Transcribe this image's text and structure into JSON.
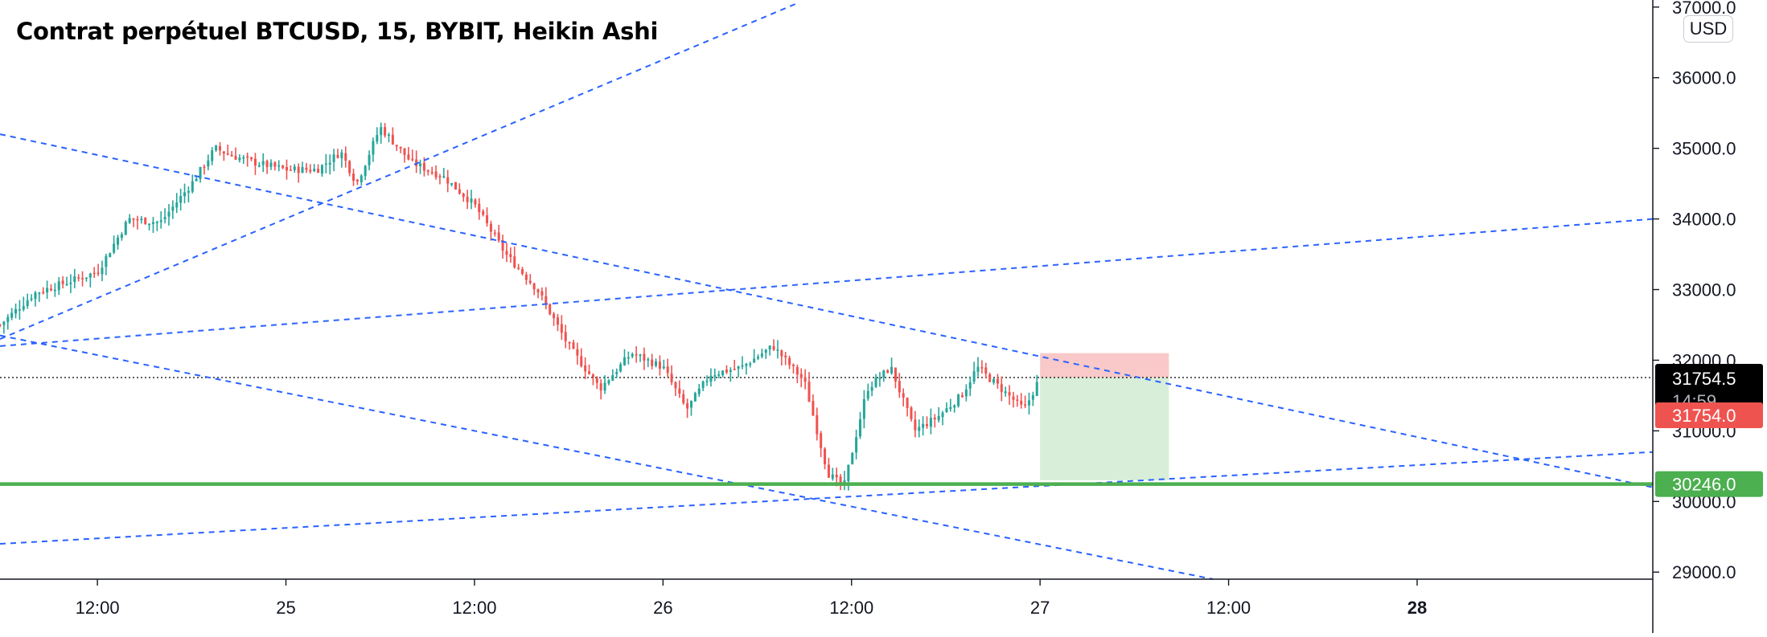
{
  "header": {
    "title": "Contrat perpétuel BTCUSD, 15, BYBIT, Heikin Ashi"
  },
  "price_scale": {
    "currency": "USD"
  },
  "colors": {
    "up": "#26a69a",
    "down": "#ef5350",
    "trendline": "#2962ff",
    "support": "#4caf50",
    "stop_zone": "#f8c9c8",
    "target_zone": "#d8eed9"
  },
  "chart_data": {
    "type": "candlestick",
    "style": "Heikin Ashi",
    "symbol": "BTCUSD",
    "interval": "15",
    "exchange": "BYBIT",
    "ylim": [
      28900,
      37100
    ],
    "y_ticks": [
      "29000.0",
      "30000.0",
      "31000.0",
      "32000.0",
      "33000.0",
      "34000.0",
      "35000.0",
      "36000.0",
      "37000.0"
    ],
    "x_ticks": [
      "12:00",
      "25",
      "12:00",
      "26",
      "12:00",
      "27",
      "12:00",
      "28"
    ],
    "x_tick_hours": [
      12,
      24,
      36,
      48,
      60,
      72,
      84,
      96
    ],
    "xlim_hours": [
      5.8,
      111
    ],
    "price_waypoints": [
      [
        5.8,
        32500
      ],
      [
        8,
        32950
      ],
      [
        10,
        33100
      ],
      [
        12,
        33250
      ],
      [
        14,
        34000
      ],
      [
        16,
        33950
      ],
      [
        18,
        34500
      ],
      [
        19.5,
        35000
      ],
      [
        20.5,
        34900
      ],
      [
        22,
        34800
      ],
      [
        24,
        34700
      ],
      [
        26,
        34700
      ],
      [
        27.5,
        34950
      ],
      [
        28.5,
        34500
      ],
      [
        30,
        35300
      ],
      [
        32,
        34800
      ],
      [
        34,
        34600
      ],
      [
        36,
        34200
      ],
      [
        38,
        33500
      ],
      [
        40,
        33000
      ],
      [
        42,
        32200
      ],
      [
        44,
        31600
      ],
      [
        46,
        32100
      ],
      [
        48,
        31900
      ],
      [
        49.5,
        31300
      ],
      [
        51,
        31800
      ],
      [
        53,
        31900
      ],
      [
        55,
        32200
      ],
      [
        57,
        31700
      ],
      [
        58.5,
        30400
      ],
      [
        59.5,
        30200
      ],
      [
        61,
        31600
      ],
      [
        62.5,
        31900
      ],
      [
        64,
        31000
      ],
      [
        65.5,
        31200
      ],
      [
        67,
        31500
      ],
      [
        68,
        31900
      ],
      [
        70,
        31500
      ],
      [
        71,
        31300
      ],
      [
        72,
        31754.5
      ]
    ],
    "last_price": "31754.5",
    "countdown": "14:59",
    "entry_price": "31754.0",
    "support_level": "30246.0",
    "trendlines": [
      {
        "from": [
          5.8,
          32300
        ],
        "to": [
          56.5,
          37050
        ]
      },
      {
        "from": [
          5.8,
          35200
        ],
        "to": [
          111,
          30200
        ]
      },
      {
        "from": [
          5.8,
          32350
        ],
        "to": [
          83,
          28900
        ]
      },
      {
        "from": [
          5.8,
          32200
        ],
        "to": [
          111,
          34000
        ]
      },
      {
        "from": [
          5.8,
          29400
        ],
        "to": [
          111,
          30700
        ]
      }
    ],
    "position": {
      "type": "long",
      "start_hour": 72,
      "end_hour": 80.2,
      "entry": 31754,
      "stop": 32100,
      "target": 30300
    }
  }
}
